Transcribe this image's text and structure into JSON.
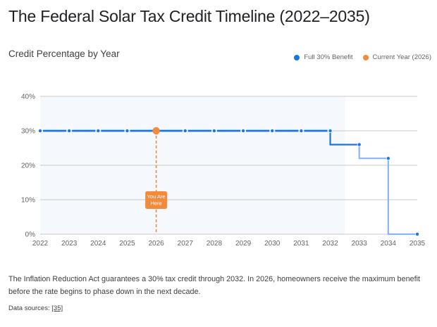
{
  "header": {
    "title": "The Federal Solar Tax Credit Timeline (2022–2035)",
    "subtitle": "Credit Percentage by Year"
  },
  "legend": [
    {
      "label": "Full 30% Benefit",
      "color": "#1a73e8"
    },
    {
      "label": "Current Year (2026)",
      "color": "#f28b3c"
    }
  ],
  "chart_data": {
    "type": "line",
    "title": "Credit Percentage by Year",
    "xlabel": "",
    "ylabel": "",
    "x": [
      2022,
      2023,
      2024,
      2025,
      2026,
      2027,
      2028,
      2029,
      2030,
      2031,
      2032,
      2033,
      2034,
      2035
    ],
    "x_tick_labels": [
      "2022",
      "2023",
      "2024",
      "2025",
      "2026",
      "2027",
      "2028",
      "2029",
      "2030",
      "2031",
      "2032",
      "2033",
      "2034",
      "2035"
    ],
    "ylim": [
      0,
      40
    ],
    "y_ticks": [
      0,
      10,
      20,
      30,
      40
    ],
    "y_tick_labels": [
      "0%",
      "10%",
      "20%",
      "30%",
      "40%"
    ],
    "grid": true,
    "line_style": "step-after",
    "series": [
      {
        "name": "Full 30% Benefit",
        "values": [
          30,
          30,
          30,
          30,
          30,
          30,
          30,
          30,
          30,
          30,
          30,
          26,
          22,
          0
        ],
        "color": "#1a73e8",
        "phase_down_color": "#8ab4f8"
      }
    ],
    "highlight_region": {
      "from": 2022,
      "to": 2032.5,
      "color": "#f5f9fd"
    },
    "annotations": [
      {
        "x": 2026,
        "y": 30,
        "text_lines": [
          "You Are",
          "Here"
        ],
        "color": "#f28b3c",
        "label": "Current Year (2026)"
      }
    ],
    "legend_position": "top-right"
  },
  "footer": {
    "description": "The Inflation Reduction Act guarantees a 30% tax credit through 2032. In 2026, homeowners receive the maximum benefit before the rate begins to phase down in the next decade.",
    "sources_label": "Data sources:",
    "sources_link": "[35]"
  }
}
